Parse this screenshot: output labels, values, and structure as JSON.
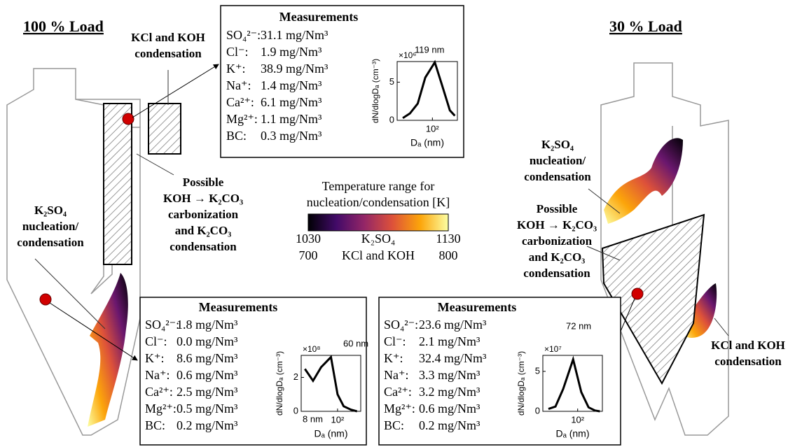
{
  "left_title": "100 % Load",
  "right_title": "30 % Load",
  "left_labels": {
    "kcl_koh": [
      "KCl and KOH",
      "condensation"
    ],
    "k2co3": [
      "Possible",
      "KOH → K₂CO₃",
      "carbonization",
      "and K₂CO₃",
      "condensation"
    ],
    "k2so4": [
      "K₂SO₄",
      "nucleation/",
      "condensation"
    ]
  },
  "right_labels": {
    "k2so4": [
      "K₂SO₄",
      "nucleation/",
      "condensation"
    ],
    "k2co3": [
      "Possible",
      "KOH → K₂CO₃",
      "carbonization",
      "and K₂CO₃",
      "condensation"
    ],
    "kcl_koh": [
      "KCl and KOH",
      "condensation"
    ]
  },
  "colorbar": {
    "title": [
      "Temperature range for",
      "nucleation/condensation [K]"
    ],
    "scales": [
      {
        "min": 1030,
        "label": "K₂SO₄",
        "max": 1130
      },
      {
        "min": 700,
        "label": "KCl and KOH",
        "max": 800
      }
    ]
  },
  "measurements": [
    {
      "title": "Measurements",
      "rows": [
        [
          "SO₄²⁻:",
          "31.1 mg/Nm³"
        ],
        [
          "Cl⁻:",
          "1.9 mg/Nm³"
        ],
        [
          "K⁺:",
          "38.9 mg/Nm³"
        ],
        [
          "Na⁺:",
          "1.4 mg/Nm³"
        ],
        [
          "Ca²⁺:",
          "6.1 mg/Nm³"
        ],
        [
          "Mg²⁺:",
          "1.1 mg/Nm³"
        ],
        [
          "BC:",
          "0.3 mg/Nm³"
        ]
      ],
      "plot": {
        "type": "line",
        "multiplier": "×10⁶",
        "ylabel": "dN/dlogDₐ (cm⁻³)",
        "xlabel": "Dₐ (nm)",
        "log_x": true,
        "xlim": [
          8,
          600
        ],
        "ylim": [
          0,
          7.7
        ],
        "xticks": [
          {
            "value": 100,
            "label": "10²"
          }
        ],
        "yticks": [
          0,
          5
        ],
        "x": [
          12,
          20,
          35,
          60,
          119,
          200,
          350,
          500
        ],
        "values": [
          0.3,
          0.9,
          2.2,
          5.6,
          7.6,
          4.6,
          1.3,
          0.6
        ],
        "annotations": [
          "119 nm"
        ]
      }
    },
    {
      "title": "Measurements",
      "rows": [
        [
          "SO₄²⁻:",
          "1.8 mg/Nm³"
        ],
        [
          "Cl⁻:",
          "0.0 mg/Nm³"
        ],
        [
          "K⁺:",
          "8.6 mg/Nm³"
        ],
        [
          "Na⁺:",
          "0.6 mg/Nm³"
        ],
        [
          "Ca²⁺:",
          "2.5 mg/Nm³"
        ],
        [
          "Mg²⁺:",
          "0.5 mg/Nm³"
        ],
        [
          "BC:",
          "0.2 mg/Nm³"
        ]
      ],
      "plot": {
        "type": "line",
        "multiplier": "×10⁸",
        "ylabel": "dN/dlogDₐ (cm⁻³)",
        "xlabel": "Dₐ (nm)",
        "log_x": true,
        "xlim": [
          6,
          600
        ],
        "ylim": [
          0,
          3.3
        ],
        "xticks": [
          {
            "value": 100,
            "label": "10²"
          }
        ],
        "yticks": [
          0,
          2
        ],
        "x": [
          8,
          15,
          28,
          60,
          100,
          160,
          280,
          450
        ],
        "values": [
          2.5,
          1.8,
          2.6,
          3.2,
          1.0,
          0.3,
          0.1,
          0.0
        ],
        "annotations": [
          "60 nm",
          "8 nm"
        ]
      }
    },
    {
      "title": "Measurements",
      "rows": [
        [
          "SO₄²⁻:",
          "23.6 mg/Nm³"
        ],
        [
          "Cl⁻:",
          "2.1 mg/Nm³"
        ],
        [
          "K⁺:",
          "32.4 mg/Nm³"
        ],
        [
          "Na⁺:",
          "3.3 mg/Nm³"
        ],
        [
          "Ca²⁺:",
          "3.2 mg/Nm³"
        ],
        [
          "Mg²⁺:",
          "0.6 mg/Nm³"
        ],
        [
          "BC:",
          "0.2 mg/Nm³"
        ]
      ],
      "plot": {
        "type": "line",
        "multiplier": "×10⁷",
        "ylabel": "dN/dlogDₐ (cm⁻³)",
        "xlabel": "Dₐ (nm)",
        "log_x": true,
        "xlim": [
          8,
          600
        ],
        "ylim": [
          0,
          7
        ],
        "xticks": [
          {
            "value": 100,
            "label": "10²"
          }
        ],
        "yticks": [
          0,
          5
        ],
        "x": [
          12,
          20,
          35,
          72,
          130,
          220,
          350,
          500
        ],
        "values": [
          0.3,
          0.6,
          2.8,
          6.5,
          2.4,
          0.5,
          0.1,
          0.0
        ],
        "annotations": [
          "72 nm"
        ]
      }
    }
  ]
}
